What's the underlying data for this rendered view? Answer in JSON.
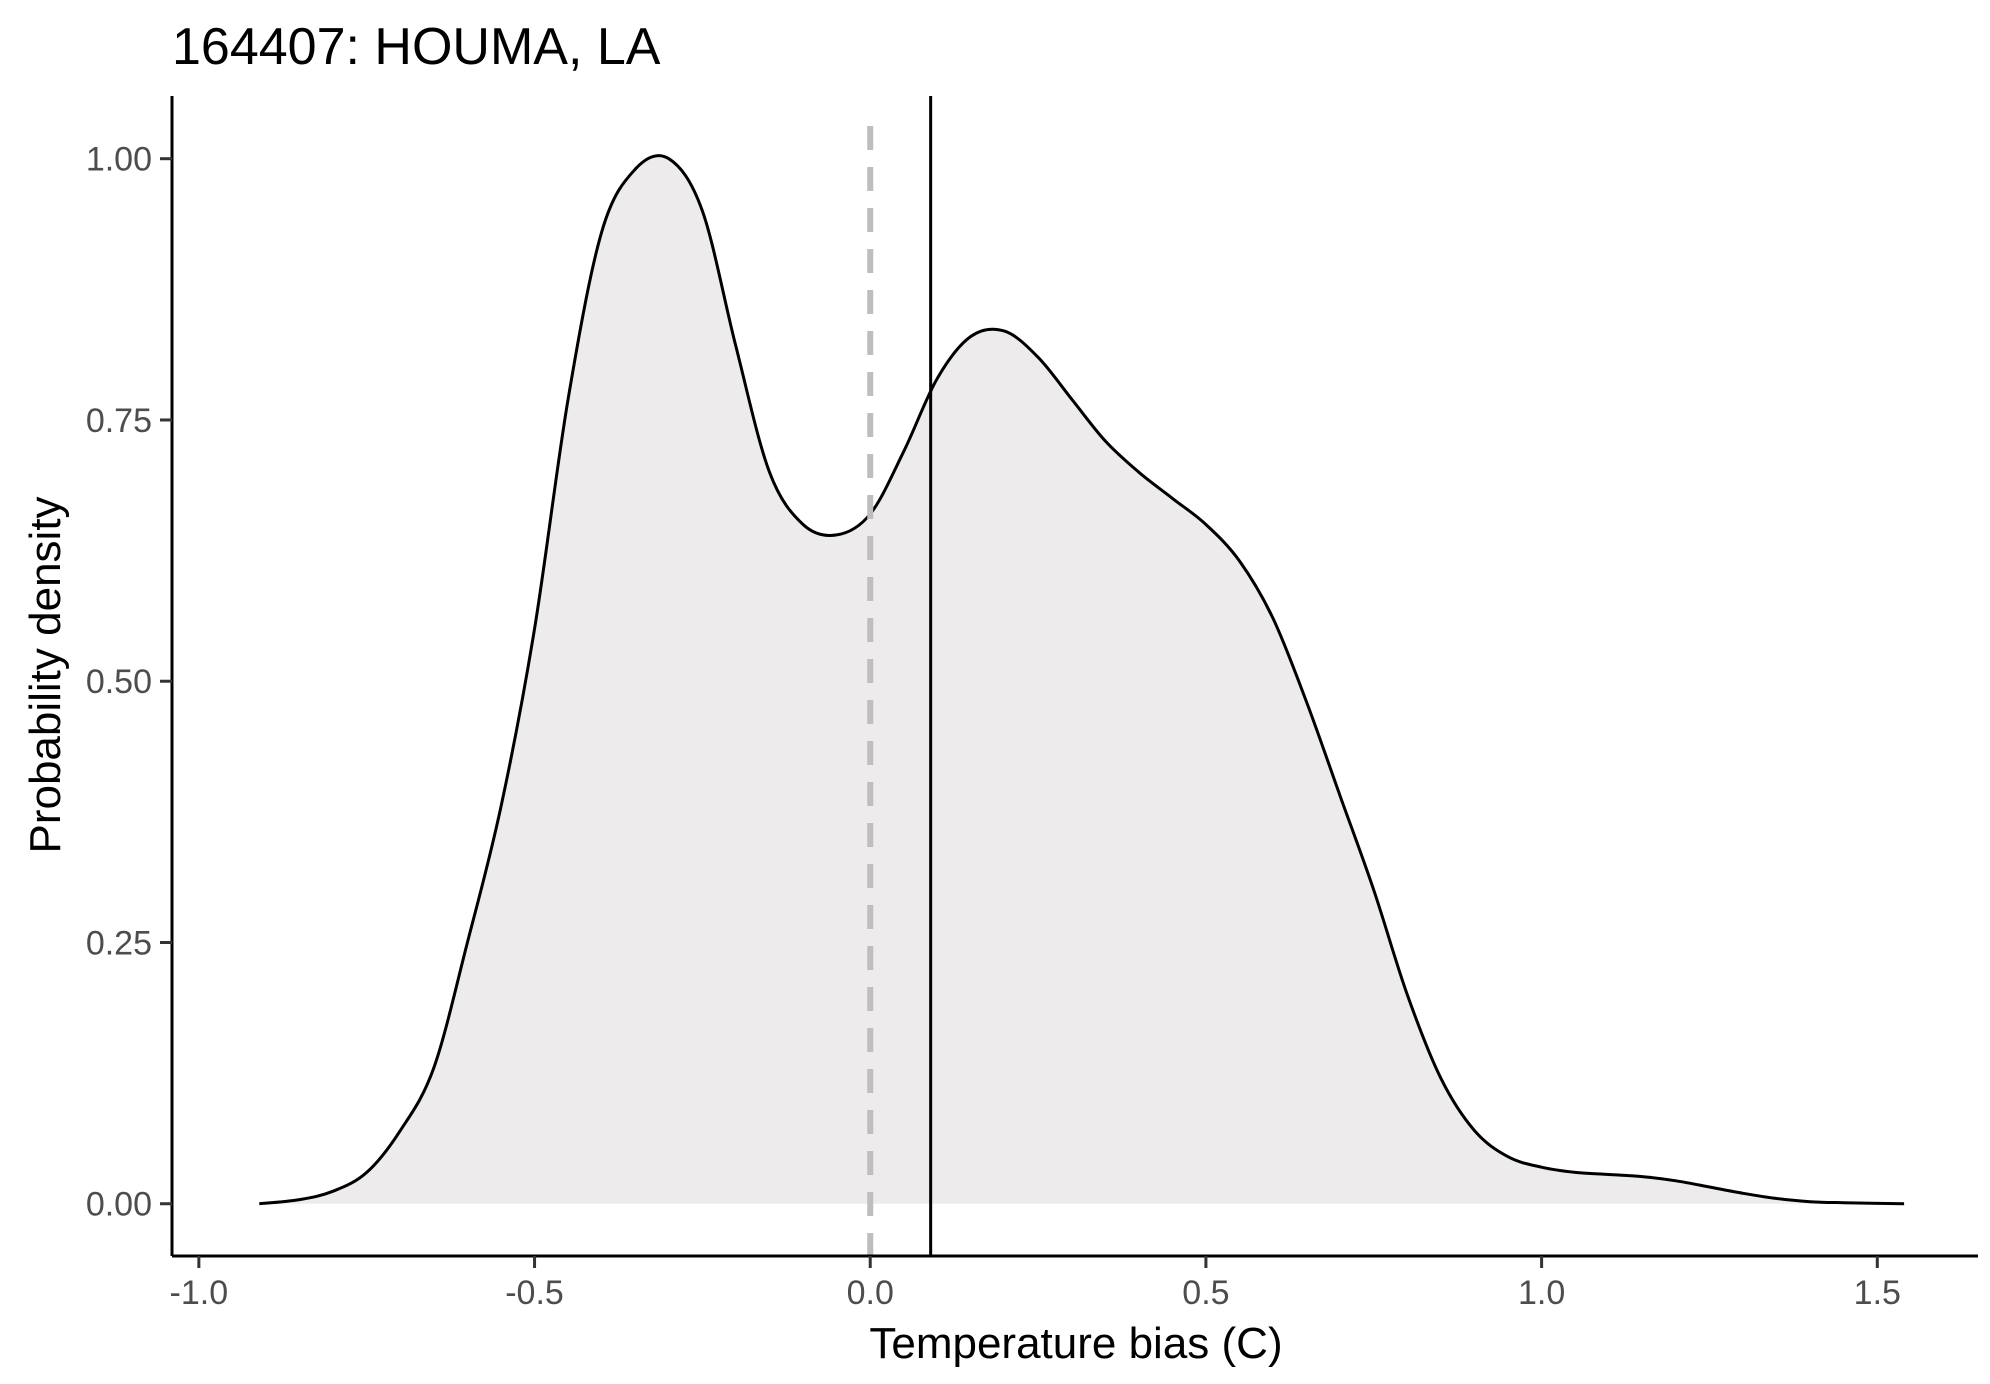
{
  "chart_data": {
    "type": "area",
    "title": "164407: HOUMA, LA",
    "xlabel": "Temperature bias (C)",
    "ylabel": "Probability density",
    "xlim": [
      -1.04,
      1.65
    ],
    "ylim": [
      -0.05,
      1.06
    ],
    "x_ticks": [
      -1.0,
      -0.5,
      0.0,
      0.5,
      1.0,
      1.5
    ],
    "x_tick_labels": [
      "-1.0",
      "-0.5",
      "0.0",
      "0.5",
      "1.0",
      "1.5"
    ],
    "y_ticks": [
      0.0,
      0.25,
      0.5,
      0.75,
      1.0
    ],
    "y_tick_labels": [
      "0.00",
      "0.25",
      "0.50",
      "0.75",
      "1.00"
    ],
    "grid": false,
    "legend": "none",
    "reference_lines": [
      {
        "x": 0.0,
        "style": "dashed",
        "color": "#bebebe"
      },
      {
        "x": 0.09,
        "style": "solid",
        "color": "#000000"
      }
    ],
    "series": [
      {
        "fill": "#edebeb",
        "line_color": "#000000",
        "x": [
          -0.91,
          -0.85,
          -0.8,
          -0.75,
          -0.7,
          -0.65,
          -0.6,
          -0.55,
          -0.5,
          -0.45,
          -0.4,
          -0.35,
          -0.3,
          -0.25,
          -0.2,
          -0.15,
          -0.1,
          -0.05,
          0.0,
          0.05,
          0.1,
          0.15,
          0.2,
          0.25,
          0.3,
          0.35,
          0.4,
          0.45,
          0.5,
          0.55,
          0.6,
          0.65,
          0.7,
          0.75,
          0.8,
          0.85,
          0.9,
          0.95,
          1.0,
          1.05,
          1.1,
          1.15,
          1.2,
          1.25,
          1.3,
          1.35,
          1.4,
          1.45,
          1.54
        ],
        "y": [
          0.0,
          0.004,
          0.012,
          0.03,
          0.07,
          0.13,
          0.25,
          0.38,
          0.55,
          0.77,
          0.93,
          0.99,
          1.0,
          0.95,
          0.82,
          0.7,
          0.65,
          0.64,
          0.66,
          0.72,
          0.79,
          0.83,
          0.835,
          0.81,
          0.77,
          0.73,
          0.7,
          0.675,
          0.65,
          0.615,
          0.56,
          0.48,
          0.39,
          0.3,
          0.2,
          0.12,
          0.07,
          0.045,
          0.035,
          0.03,
          0.028,
          0.026,
          0.022,
          0.016,
          0.01,
          0.005,
          0.002,
          0.001,
          0.0
        ]
      }
    ]
  }
}
